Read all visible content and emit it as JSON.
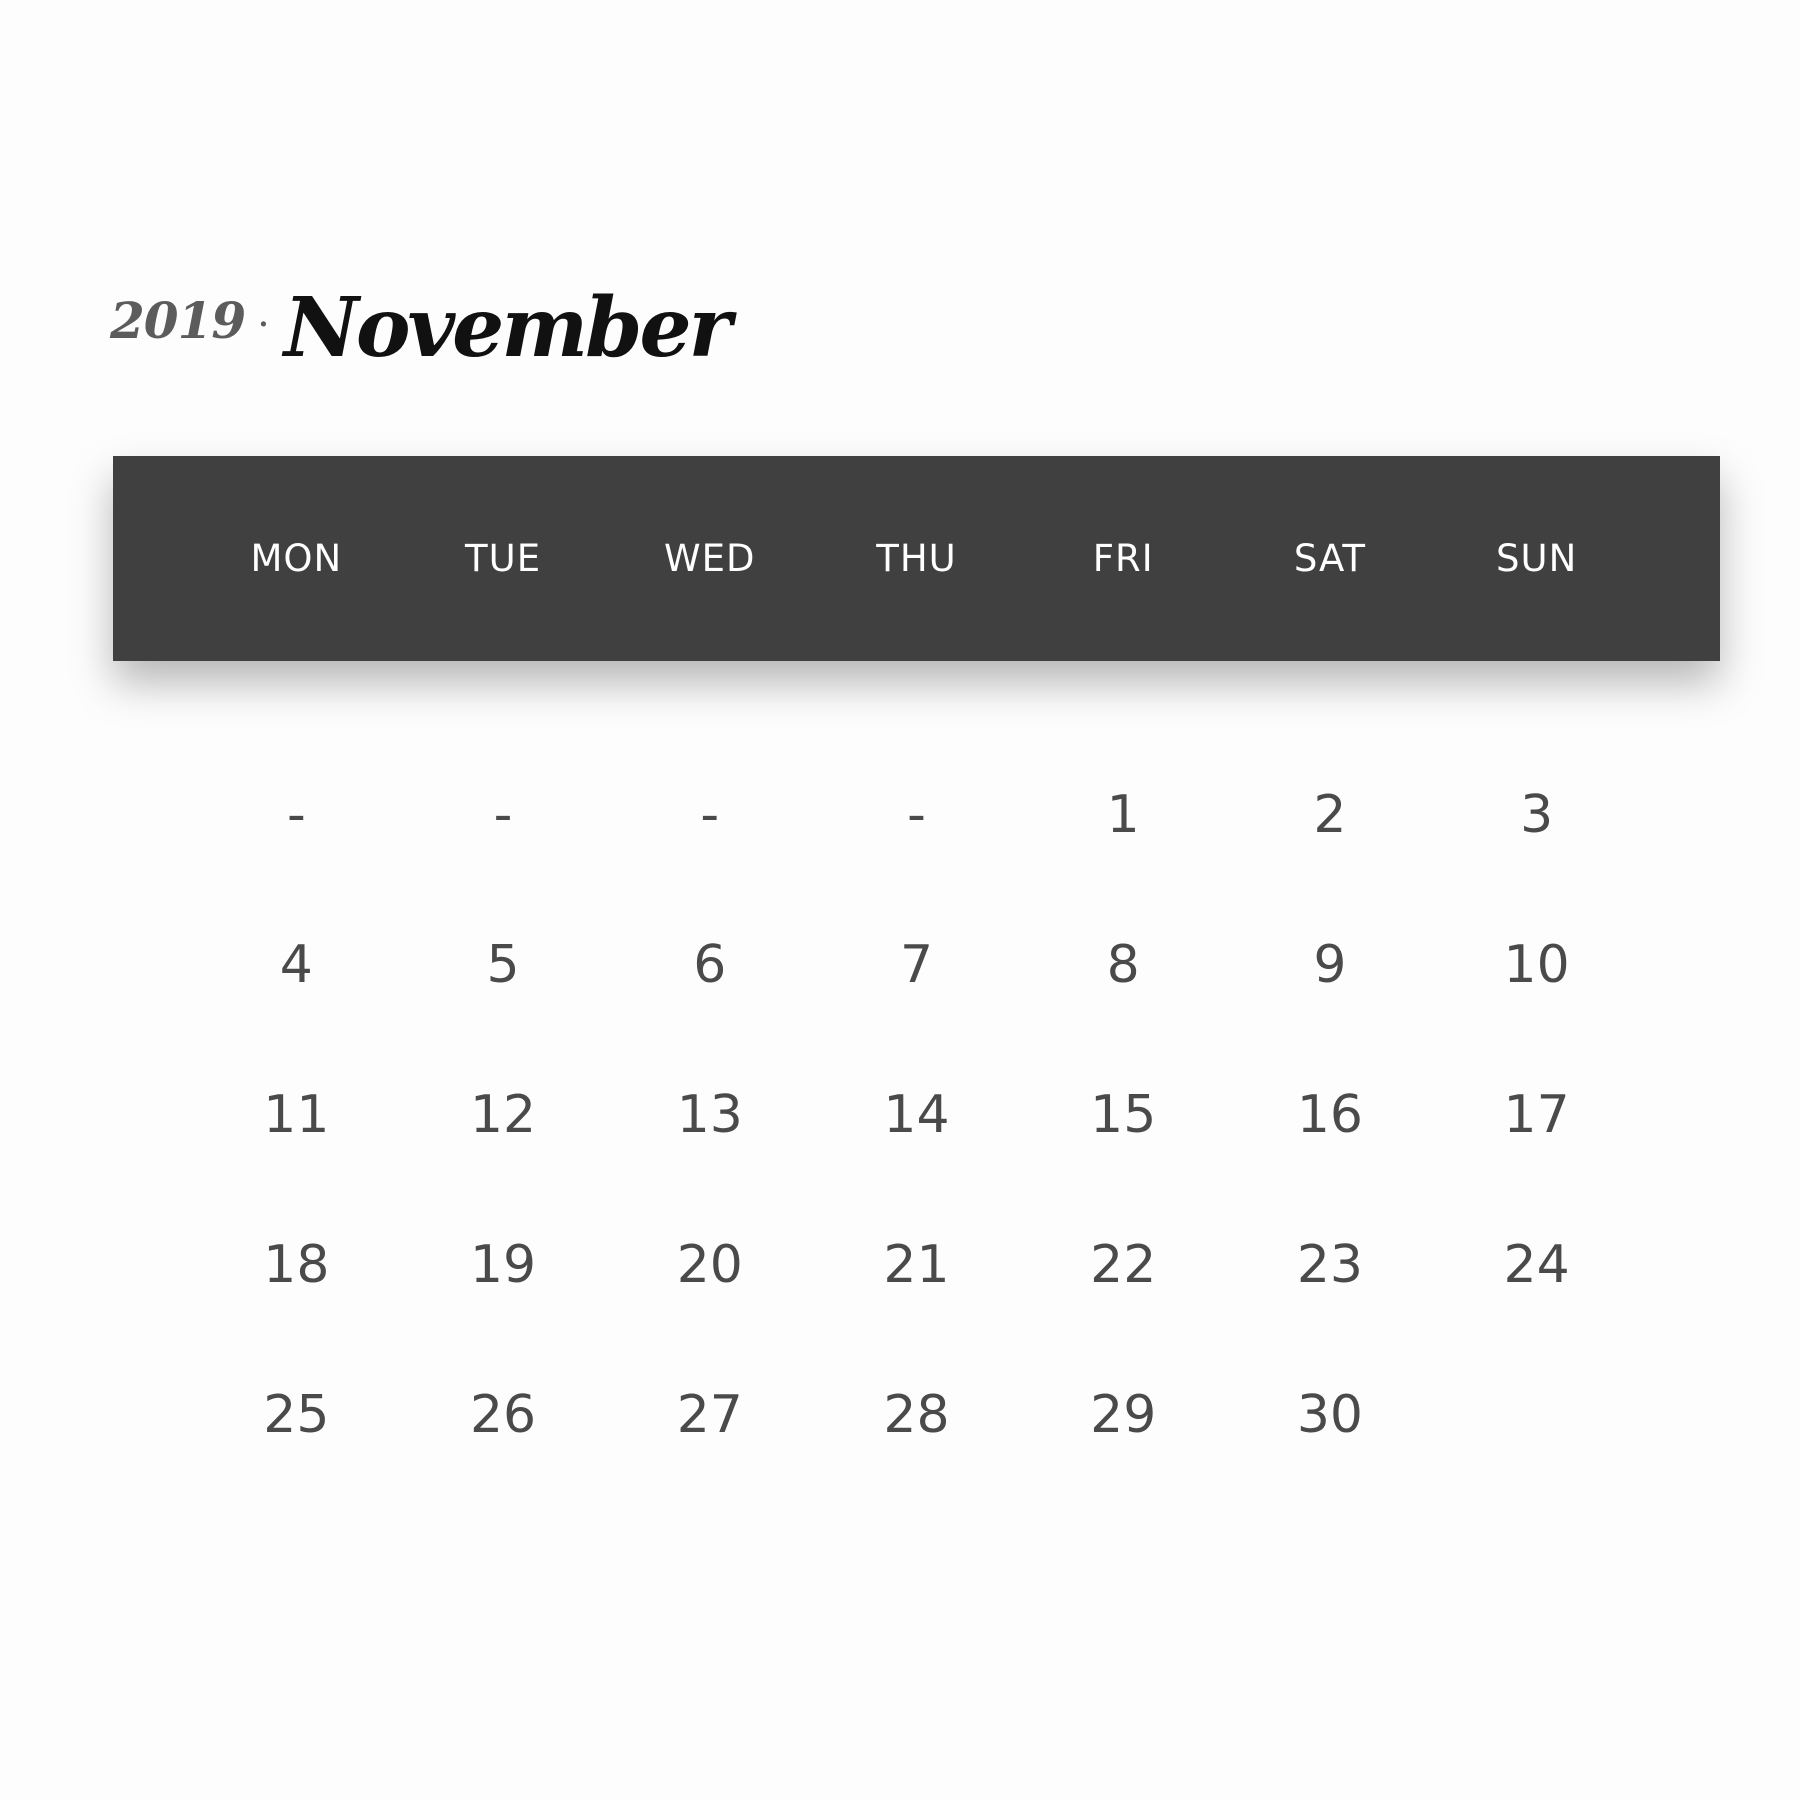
{
  "header": {
    "year": "2019",
    "separator": "·",
    "month": "November"
  },
  "weekdays": [
    "MON",
    "TUE",
    "WED",
    "THU",
    "FRI",
    "SAT",
    "SUN"
  ],
  "weeks": [
    [
      "-",
      "-",
      "-",
      "-",
      "1",
      "2",
      "3"
    ],
    [
      "4",
      "5",
      "6",
      "7",
      "8",
      "9",
      "10"
    ],
    [
      "11",
      "12",
      "13",
      "14",
      "15",
      "16",
      "17"
    ],
    [
      "18",
      "19",
      "20",
      "21",
      "22",
      "23",
      "24"
    ],
    [
      "25",
      "26",
      "27",
      "28",
      "29",
      "30",
      ""
    ]
  ],
  "colors": {
    "background": "#fdfdfd",
    "header_bar": "#404040",
    "weekday_text": "#ffffff",
    "day_text": "#4a4a4a",
    "month_text": "#111111",
    "year_text": "#5c5c5c"
  }
}
